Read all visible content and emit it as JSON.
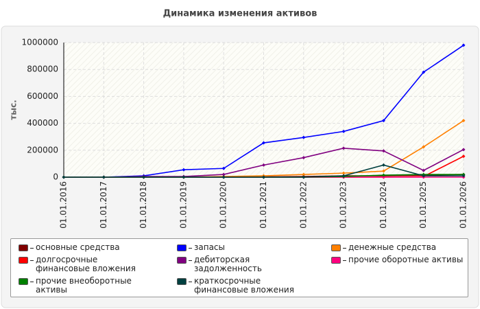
{
  "chart_data": {
    "type": "line",
    "title": "Динамика изменения активов",
    "y_label": "тыс.",
    "categories": [
      "01.01.2016",
      "01.01.2017",
      "01.01.2018",
      "01.01.2019",
      "01.01.2020",
      "01.01.2021",
      "01.01.2022",
      "01.01.2023",
      "01.01.2024",
      "01.01.2025",
      "01.01.2026"
    ],
    "series": [
      {
        "name": "основные средства",
        "color": "#800000",
        "values": [
          0,
          0,
          0,
          0,
          0,
          2000,
          5000,
          10000,
          10000,
          15000,
          20000
        ]
      },
      {
        "name": "запасы",
        "color": "#0000ff",
        "values": [
          0,
          0,
          10000,
          55000,
          65000,
          255000,
          295000,
          340000,
          420000,
          780000,
          980000
        ]
      },
      {
        "name": "денежные средства",
        "color": "#ff8000",
        "values": [
          0,
          0,
          0,
          0,
          5000,
          10000,
          20000,
          30000,
          45000,
          225000,
          420000
        ]
      },
      {
        "name": "долгосрочные финансовые вложения",
        "color": "#ff0000",
        "values": [
          0,
          0,
          0,
          0,
          0,
          0,
          0,
          0,
          0,
          5000,
          155000
        ]
      },
      {
        "name": "дебиторская задолженность",
        "color": "#800080",
        "values": [
          0,
          0,
          5000,
          5000,
          20000,
          90000,
          145000,
          215000,
          195000,
          50000,
          205000
        ]
      },
      {
        "name": "прочие оборотные активы",
        "color": "#ff0080",
        "values": [
          0,
          0,
          0,
          0,
          0,
          0,
          0,
          0,
          0,
          0,
          0
        ]
      },
      {
        "name": "прочие внеоборотные активы",
        "color": "#008000",
        "values": [
          0,
          0,
          0,
          0,
          0,
          0,
          0,
          5000,
          15000,
          20000,
          20000
        ]
      },
      {
        "name": "краткосрочные финансовые вложения",
        "color": "#004040",
        "values": [
          0,
          0,
          0,
          0,
          0,
          0,
          0,
          10000,
          90000,
          10000,
          10000
        ]
      }
    ],
    "ylim": [
      0,
      1000000
    ],
    "yticks": [
      0,
      200000,
      400000,
      600000,
      800000,
      1000000
    ],
    "grid": true
  }
}
